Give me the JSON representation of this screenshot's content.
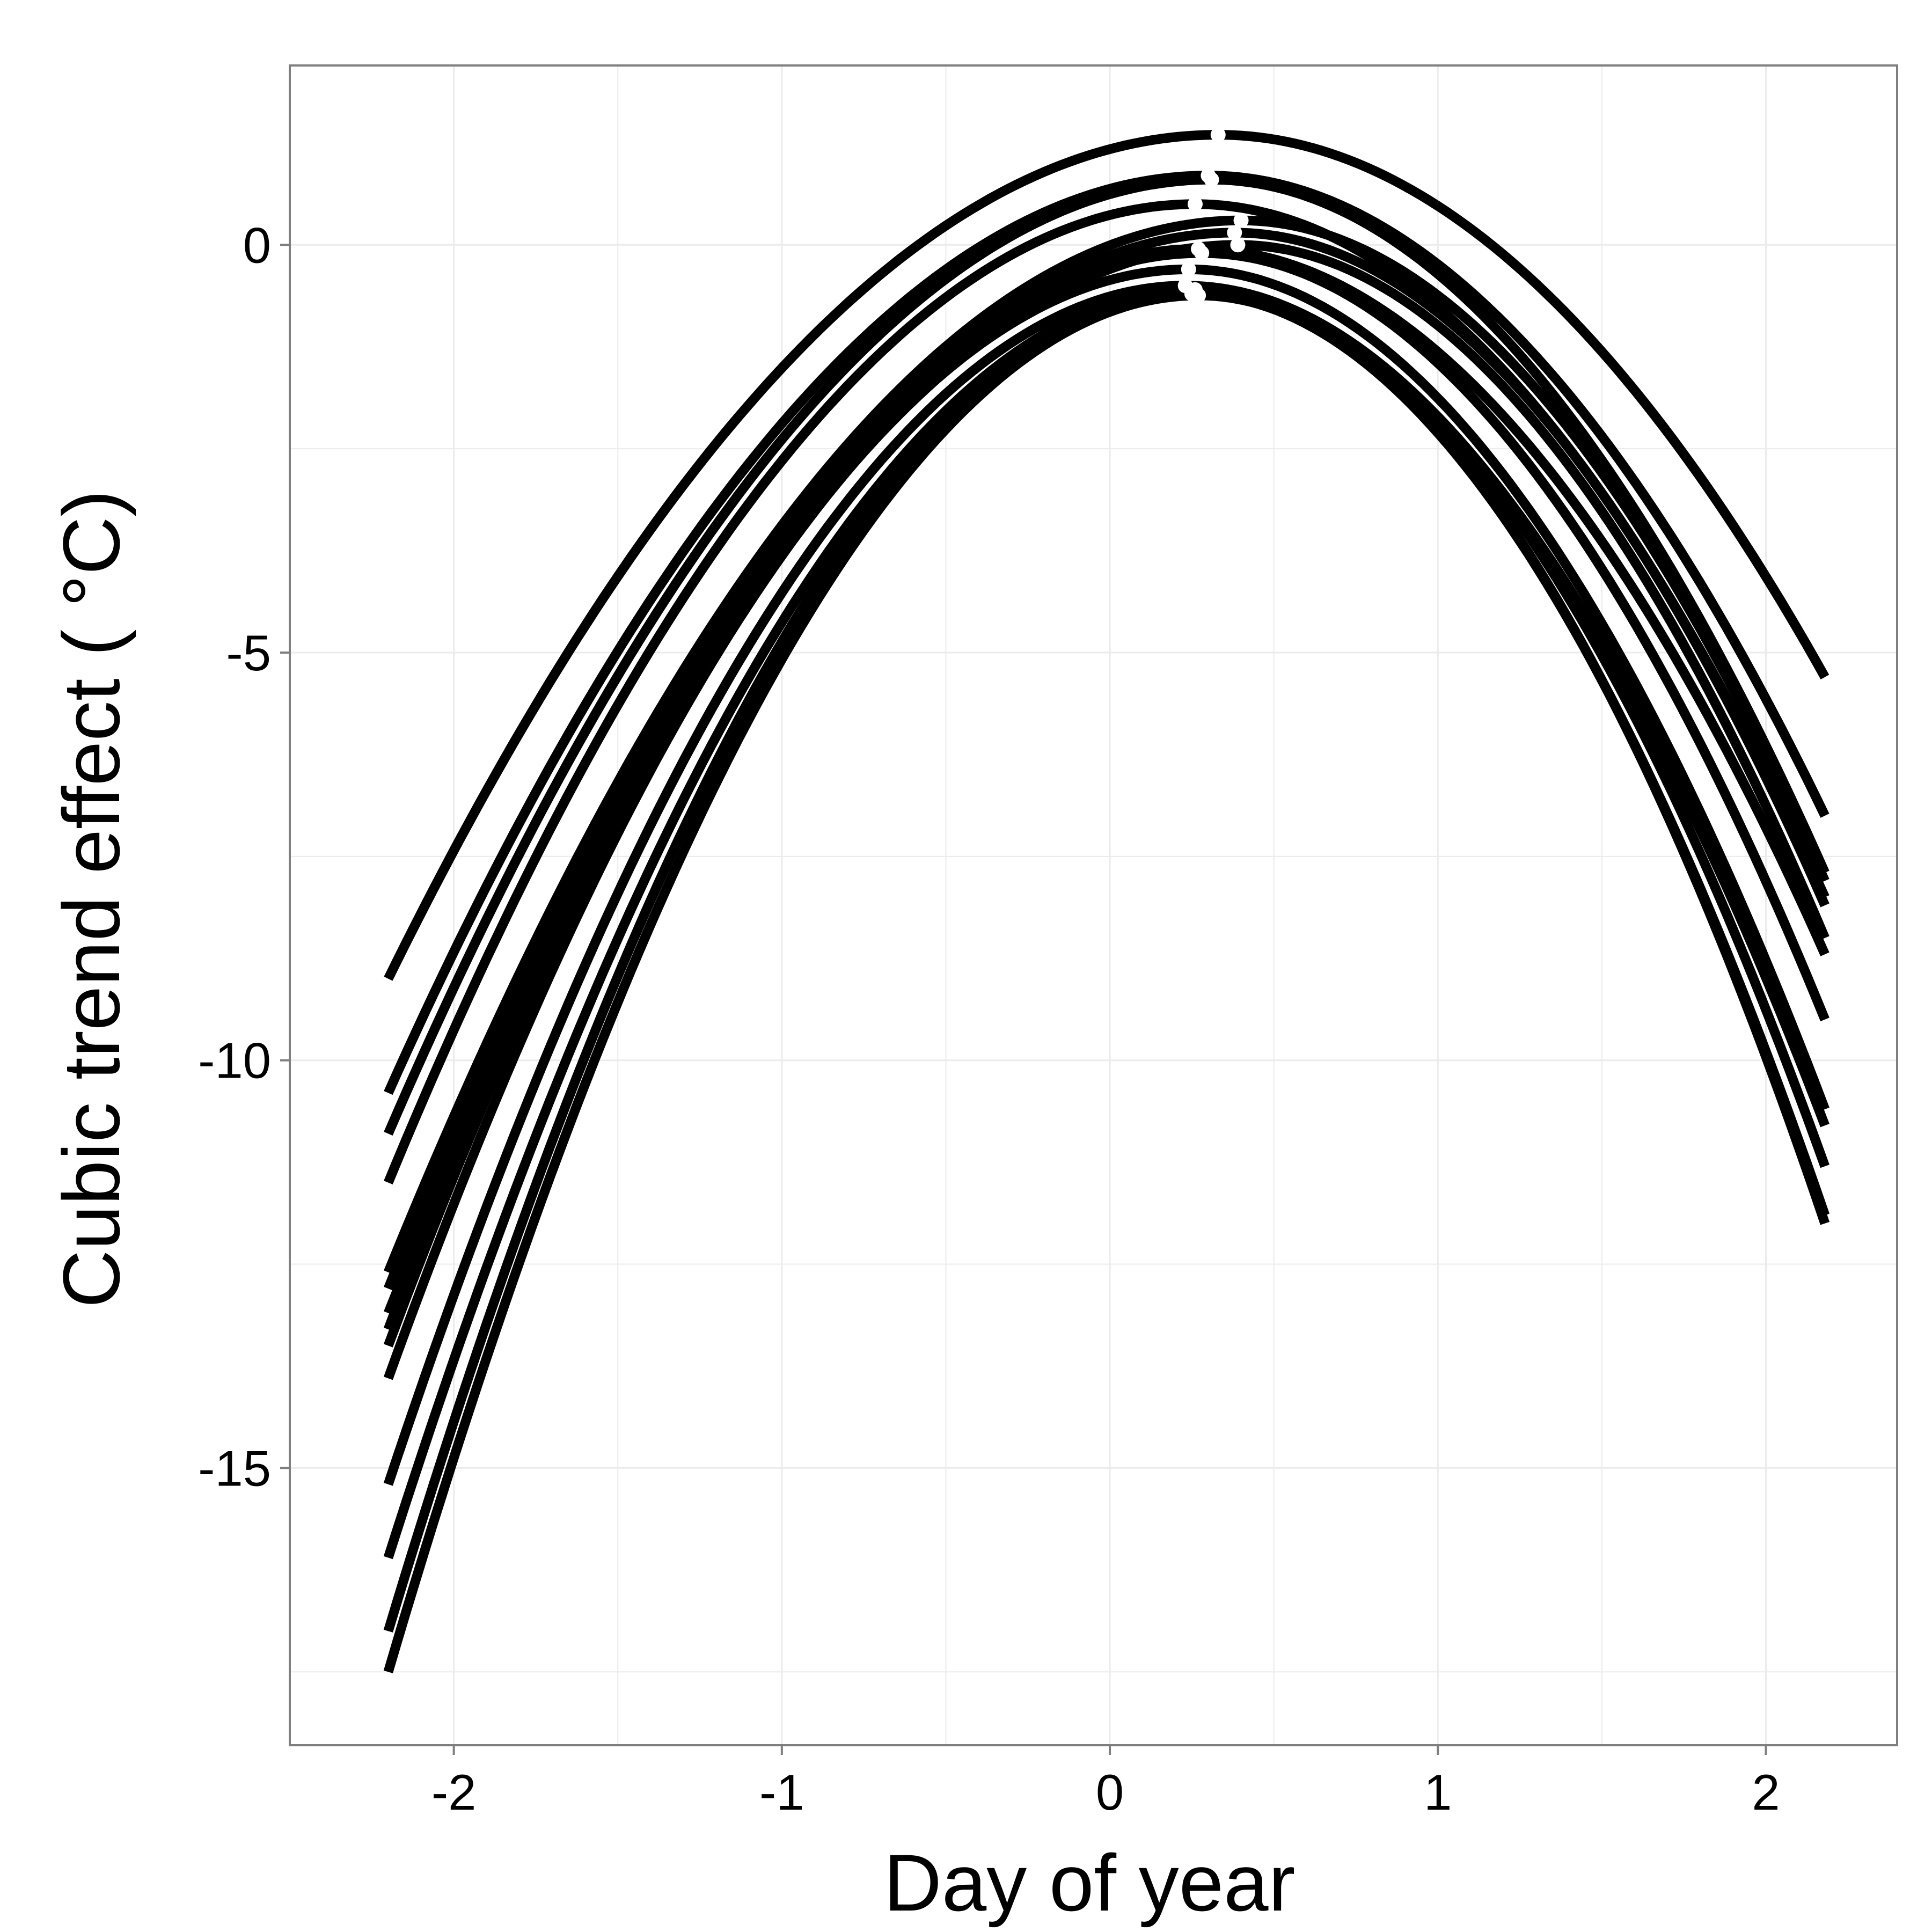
{
  "chart_data": {
    "type": "line",
    "xlabel": "Day of year",
    "ylabel": "Cubic trend effect ( °C)",
    "xlim": [
      -2.5,
      2.4
    ],
    "ylim": [
      -18.4,
      2.2
    ],
    "x_ticks": [
      -2,
      -1,
      0,
      1,
      2
    ],
    "x_tick_labels": [
      "-2",
      "-1",
      "0",
      "1",
      "2"
    ],
    "y_ticks": [
      0,
      -5,
      -10,
      -15
    ],
    "y_tick_labels": [
      "0",
      "-5",
      "-10",
      "-15"
    ],
    "grid": true,
    "legend": "none",
    "x_range": [
      -2.2,
      2.18
    ],
    "series": [
      {
        "values": [
          [
            -2.2,
            -9.0
          ],
          [
            0.33,
            1.35
          ],
          [
            2.18,
            -5.3
          ]
        ]
      },
      {
        "values": [
          [
            -2.2,
            -10.4
          ],
          [
            0.3,
            0.85
          ],
          [
            2.18,
            -7.0
          ]
        ]
      },
      {
        "values": [
          [
            -2.2,
            -10.9
          ],
          [
            0.31,
            0.8
          ],
          [
            2.18,
            -7.7
          ]
        ]
      },
      {
        "values": [
          [
            -2.2,
            -11.5
          ],
          [
            0.26,
            0.5
          ],
          [
            2.18,
            -8.0
          ]
        ]
      },
      {
        "values": [
          [
            -2.2,
            -12.6
          ],
          [
            0.4,
            0.3
          ],
          [
            2.18,
            -7.8
          ]
        ]
      },
      {
        "values": [
          [
            -2.2,
            -12.8
          ],
          [
            0.38,
            0.15
          ],
          [
            2.18,
            -8.1
          ]
        ]
      },
      {
        "values": [
          [
            -2.2,
            -13.1
          ],
          [
            0.39,
            0.0
          ],
          [
            2.18,
            -8.5
          ]
        ]
      },
      {
        "values": [
          [
            -2.2,
            -13.3
          ],
          [
            0.27,
            -0.05
          ],
          [
            2.18,
            -8.7
          ]
        ]
      },
      {
        "values": [
          [
            -2.2,
            -13.5
          ],
          [
            0.28,
            -0.1
          ],
          [
            2.18,
            -9.5
          ]
        ]
      },
      {
        "values": [
          [
            -2.2,
            -13.9
          ],
          [
            0.24,
            -0.3
          ],
          [
            2.18,
            -10.6
          ]
        ]
      },
      {
        "values": [
          [
            -2.2,
            -15.2
          ],
          [
            0.23,
            -0.5
          ],
          [
            2.18,
            -10.8
          ]
        ]
      },
      {
        "values": [
          [
            -2.2,
            -16.1
          ],
          [
            0.26,
            -0.55
          ],
          [
            2.18,
            -11.3
          ]
        ]
      },
      {
        "values": [
          [
            -2.2,
            -17.0
          ],
          [
            0.25,
            -0.6
          ],
          [
            2.18,
            -11.9
          ]
        ]
      },
      {
        "values": [
          [
            -2.2,
            -17.5
          ],
          [
            0.27,
            -0.62
          ],
          [
            2.18,
            -12.0
          ]
        ]
      }
    ]
  },
  "colors": {
    "line": "#000000",
    "peak_point": "#ffffff",
    "grid": "#ebebeb",
    "panel_border": "#7f7f7f",
    "background": "#ffffff"
  }
}
